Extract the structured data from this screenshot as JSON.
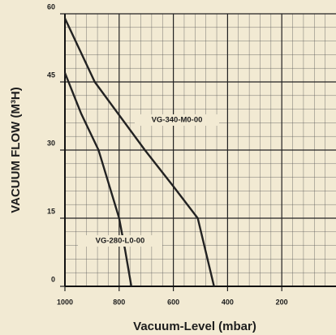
{
  "chart_data": {
    "type": "line",
    "xlabel": "Vacuum-Level (mbar)",
    "ylabel": "VACUUM FLOW (M³H)",
    "xlim": [
      1000,
      0
    ],
    "xticks": [
      1000,
      800,
      600,
      400,
      200
    ],
    "ylim": [
      0,
      60
    ],
    "yticks": [
      0,
      15,
      30,
      45,
      60
    ],
    "grid": true,
    "series": [
      {
        "name": "VG-340-M0-00",
        "color": "#222222",
        "x": [
          1000,
          890,
          705,
          600,
          510,
          450
        ],
        "values": [
          59,
          45,
          30,
          22,
          15,
          0
        ]
      },
      {
        "name": "VG-280-L0-00",
        "color": "#222222",
        "x": [
          1000,
          940,
          876,
          800,
          778,
          755
        ],
        "values": [
          47,
          38,
          30,
          15,
          8,
          0
        ]
      }
    ]
  }
}
